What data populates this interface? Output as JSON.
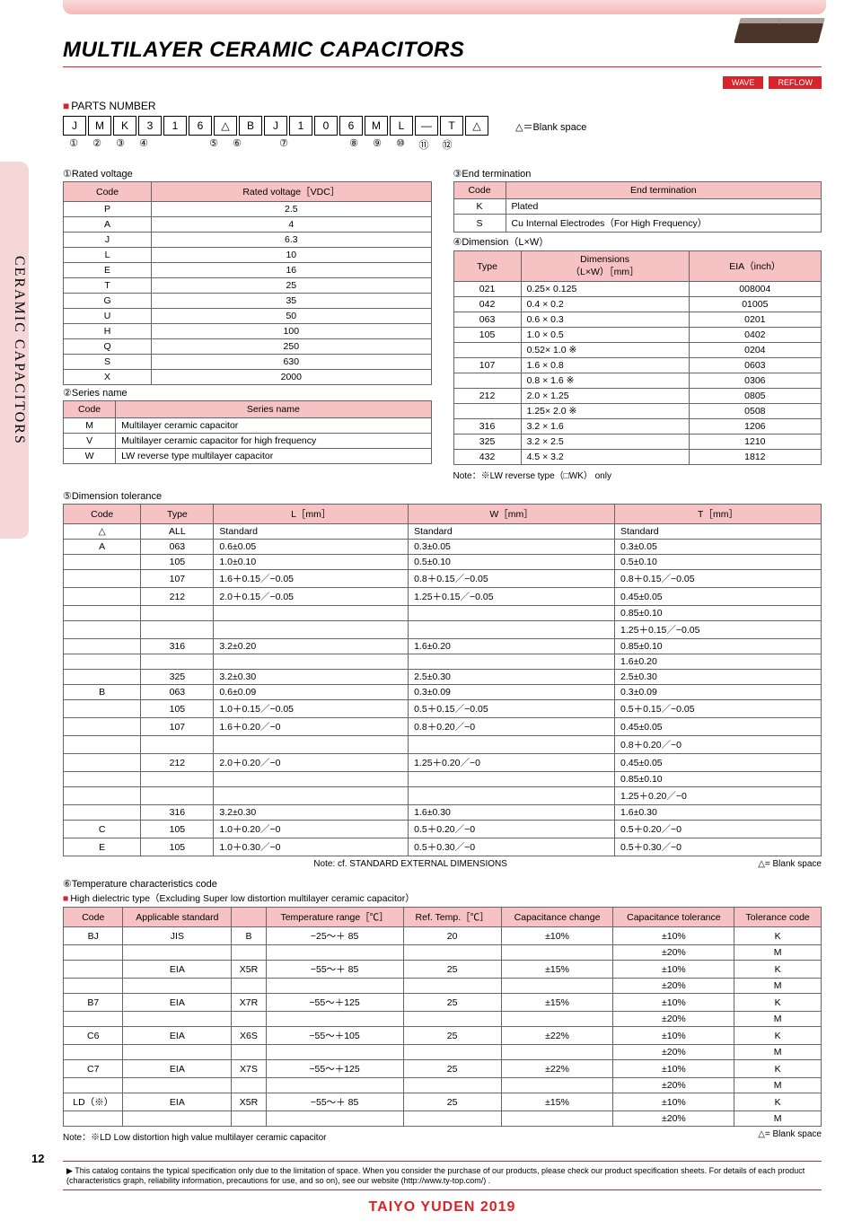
{
  "title": "MULTILAYER CERAMIC CAPACITORS",
  "sidetab": "CERAMIC CAPACITORS",
  "badges": [
    "WAVE",
    "REFLOW"
  ],
  "parts_hd": "PARTS NUMBER",
  "blank_note": "△＝Blank space",
  "part": {
    "cells": [
      "J",
      "M",
      "K",
      "3",
      "1",
      "6",
      "△",
      "B",
      "J",
      "1",
      "0",
      "6",
      "M",
      "L",
      "—",
      "T",
      "△"
    ],
    "nums": [
      "①",
      "②",
      "③",
      "④",
      "",
      "",
      "⑤",
      "⑥",
      "",
      "⑦",
      "",
      "",
      "⑧",
      "⑨",
      "⑩",
      "⑪",
      "⑫"
    ]
  },
  "t1": {
    "title": "①Rated voltage",
    "head": [
      "Code",
      "Rated voltage［VDC］"
    ],
    "rows": [
      [
        "P",
        "2.5"
      ],
      [
        "A",
        "4"
      ],
      [
        "J",
        "6.3"
      ],
      [
        "L",
        "10"
      ],
      [
        "E",
        "16"
      ],
      [
        "T",
        "25"
      ],
      [
        "G",
        "35"
      ],
      [
        "U",
        "50"
      ],
      [
        "H",
        "100"
      ],
      [
        "Q",
        "250"
      ],
      [
        "S",
        "630"
      ],
      [
        "X",
        "2000"
      ]
    ]
  },
  "t2": {
    "title": "②Series name",
    "head": [
      "Code",
      "Series name"
    ],
    "rows": [
      [
        "M",
        "Multilayer ceramic capacitor"
      ],
      [
        "V",
        "Multilayer ceramic capacitor for high frequency"
      ],
      [
        "W",
        "LW reverse type multilayer capacitor"
      ]
    ]
  },
  "t3": {
    "title": "③End termination",
    "head": [
      "Code",
      "End termination"
    ],
    "rows": [
      [
        "K",
        "Plated"
      ],
      [
        "S",
        "Cu Internal Electrodes（For High Frequency）"
      ]
    ]
  },
  "t4": {
    "title": "④Dimension（L×W）",
    "head": [
      "Type",
      "Dimensions\n（L×W）［mm］",
      "EIA（inch）"
    ],
    "rows": [
      [
        "021",
        "0.25× 0.125",
        "008004"
      ],
      [
        "042",
        "0.4  ×  0.2",
        "01005"
      ],
      [
        "063",
        "0.6  ×  0.3",
        "0201"
      ],
      [
        "105",
        "1.0  ×  0.5",
        "0402"
      ],
      [
        "",
        "0.52×  1.0  ※",
        "0204"
      ],
      [
        "107",
        "1.6  ×  0.8",
        "0603"
      ],
      [
        "",
        "0.8  ×  1.6  ※",
        "0306"
      ],
      [
        "212",
        "2.0  ×  1.25",
        "0805"
      ],
      [
        "",
        "1.25×  2.0  ※",
        "0508"
      ],
      [
        "316",
        "3.2  ×  1.6",
        "1206"
      ],
      [
        "325",
        "3.2  ×  2.5",
        "1210"
      ],
      [
        "432",
        "4.5  ×  3.2",
        "1812"
      ]
    ],
    "note": "Note：※LW reverse type（□WK） only"
  },
  "t5": {
    "title": "⑤Dimension tolerance",
    "head": [
      "Code",
      "Type",
      "L［mm］",
      "W［mm］",
      "T［mm］"
    ],
    "rows": [
      [
        "△",
        "ALL",
        "Standard",
        "Standard",
        "Standard"
      ],
      [
        "A",
        "063",
        "0.6±0.05",
        "0.3±0.05",
        "0.3±0.05"
      ],
      [
        "",
        "105",
        "1.0±0.10",
        "0.5±0.10",
        "0.5±0.10"
      ],
      [
        "",
        "107",
        "1.6＋0.15／−0.05",
        "0.8＋0.15／−0.05",
        "0.8＋0.15／−0.05"
      ],
      [
        "",
        "212",
        "2.0＋0.15／−0.05",
        "1.25＋0.15／−0.05",
        "0.45±0.05"
      ],
      [
        "",
        "",
        "",
        "",
        "0.85±0.10"
      ],
      [
        "",
        "",
        "",
        "",
        "1.25＋0.15／−0.05"
      ],
      [
        "",
        "316",
        "3.2±0.20",
        "1.6±0.20",
        "0.85±0.10"
      ],
      [
        "",
        "",
        "",
        "",
        "1.6±0.20"
      ],
      [
        "",
        "325",
        "3.2±0.30",
        "2.5±0.30",
        "2.5±0.30"
      ],
      [
        "B",
        "063",
        "0.6±0.09",
        "0.3±0.09",
        "0.3±0.09"
      ],
      [
        "",
        "105",
        "1.0＋0.15／−0.05",
        "0.5＋0.15／−0.05",
        "0.5＋0.15／−0.05"
      ],
      [
        "",
        "107",
        "1.6＋0.20／−0",
        "0.8＋0.20／−0",
        "0.45±0.05"
      ],
      [
        "",
        "",
        "",
        "",
        "0.8＋0.20／−0"
      ],
      [
        "",
        "212",
        "2.0＋0.20／−0",
        "1.25＋0.20／−0",
        "0.45±0.05"
      ],
      [
        "",
        "",
        "",
        "",
        "0.85±0.10"
      ],
      [
        "",
        "",
        "",
        "",
        "1.25＋0.20／−0"
      ],
      [
        "",
        "316",
        "3.2±0.30",
        "1.6±0.30",
        "1.6±0.30"
      ],
      [
        "C",
        "105",
        "1.0＋0.20／−0",
        "0.5＋0.20／−0",
        "0.5＋0.20／−0"
      ],
      [
        "E",
        "105",
        "1.0＋0.30／−0",
        "0.5＋0.30／−0",
        "0.5＋0.30／−0"
      ]
    ],
    "note_c": "Note: cf. STANDARD EXTERNAL DIMENSIONS",
    "note_r": "△= Blank space"
  },
  "t6": {
    "title": "⑥Temperature characteristics code",
    "sub": "High dielectric type（Excluding Super low distortion multilayer ceramic capacitor）",
    "head": [
      "Code",
      "Applicable standard",
      "",
      "Temperature range［℃］",
      "Ref. Temp.［℃］",
      "Capacitance change",
      "Capacitance tolerance",
      "Tolerance code"
    ],
    "rows": [
      [
        "BJ",
        "JIS",
        "B",
        "−25～＋ 85",
        "20",
        "±10%",
        "±10%",
        "K"
      ],
      [
        "",
        "",
        "",
        "",
        "",
        "",
        "±20%",
        "M"
      ],
      [
        "",
        "EIA",
        "X5R",
        "−55～＋ 85",
        "25",
        "±15%",
        "±10%",
        "K"
      ],
      [
        "",
        "",
        "",
        "",
        "",
        "",
        "±20%",
        "M"
      ],
      [
        "B7",
        "EIA",
        "X7R",
        "−55～＋125",
        "25",
        "±15%",
        "±10%",
        "K"
      ],
      [
        "",
        "",
        "",
        "",
        "",
        "",
        "±20%",
        "M"
      ],
      [
        "C6",
        "EIA",
        "X6S",
        "−55～＋105",
        "25",
        "±22%",
        "±10%",
        "K"
      ],
      [
        "",
        "",
        "",
        "",
        "",
        "",
        "±20%",
        "M"
      ],
      [
        "C7",
        "EIA",
        "X7S",
        "−55～＋125",
        "25",
        "±22%",
        "±10%",
        "K"
      ],
      [
        "",
        "",
        "",
        "",
        "",
        "",
        "±20%",
        "M"
      ],
      [
        "LD（※）",
        "EIA",
        "X5R",
        "−55～＋ 85",
        "25",
        "±15%",
        "±10%",
        "K"
      ],
      [
        "",
        "",
        "",
        "",
        "",
        "",
        "±20%",
        "M"
      ]
    ],
    "note_l": "Note：※LD Low distortion high value multilayer ceramic capacitor",
    "note_r": "△= Blank space"
  },
  "footnote": "▶ This catalog contains the typical specification only due to the limitation of space.  When you consider the purchase of our products, please check our product specification sheets.  For details of each product (characteristics graph, reliability information, precautions for use, and so on), see our website (http://www.ty-top.com/) .",
  "brand": "TAIYO YUDEN  2019",
  "page": "12"
}
